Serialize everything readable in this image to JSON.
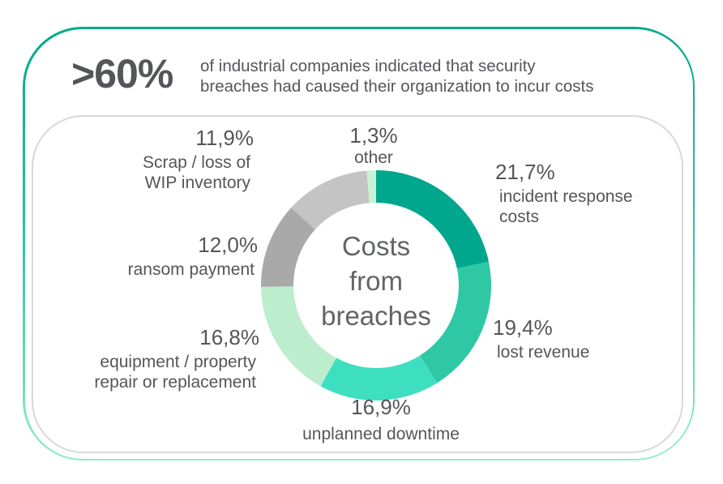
{
  "header": {
    "stat": ">60%",
    "description_line1": "of industrial companies indicated that security",
    "description_line2": "breaches had caused their organization to incur costs"
  },
  "colors": {
    "border_gradient_top": "#00a98d",
    "border_gradient_bottom": "#8deec3",
    "inner_card_border": "#d8d8d8",
    "text": "#55565a",
    "center_text": "#626467"
  },
  "chart_data": {
    "type": "pie",
    "subtype": "donut",
    "title": "Costs from breaches",
    "center_text": [
      "Costs",
      "from",
      "breaches"
    ],
    "unit": "%",
    "decimal_separator": ",",
    "direction": "clockwise",
    "start_angle_deg": 0,
    "outer_radius": 142,
    "inner_radius": 102,
    "segments": [
      {
        "label": "incident response costs",
        "value": 21.7,
        "display": "21,7%",
        "label_lines": [
          "incident response",
          "costs"
        ],
        "color": "#00a78c"
      },
      {
        "label": "lost revenue",
        "value": 19.4,
        "display": "19,4%",
        "label_lines": [
          "lost revenue"
        ],
        "color": "#2ec8a5"
      },
      {
        "label": "unplanned downtime",
        "value": 16.9,
        "display": "16,9%",
        "label_lines": [
          "unplanned downtime"
        ],
        "color": "#3ddfc0"
      },
      {
        "label": "equipment / property repair or replacement",
        "value": 16.8,
        "display": "16,8%",
        "label_lines": [
          "equipment / property",
          "repair or replacement"
        ],
        "color": "#bceecd"
      },
      {
        "label": "ransom payment",
        "value": 12.0,
        "display": "12,0%",
        "label_lines": [
          "ransom payment"
        ],
        "color": "#a9a9a9"
      },
      {
        "label": "Scrap / loss of WIP inventory",
        "value": 11.9,
        "display": "11,9%",
        "label_lines": [
          "Scrap / loss of",
          "WIP inventory"
        ],
        "color": "#c4c4c4"
      },
      {
        "label": "other",
        "value": 1.3,
        "display": "1,3%",
        "label_lines": [
          "other"
        ],
        "color": "#c7f3d5"
      }
    ]
  }
}
